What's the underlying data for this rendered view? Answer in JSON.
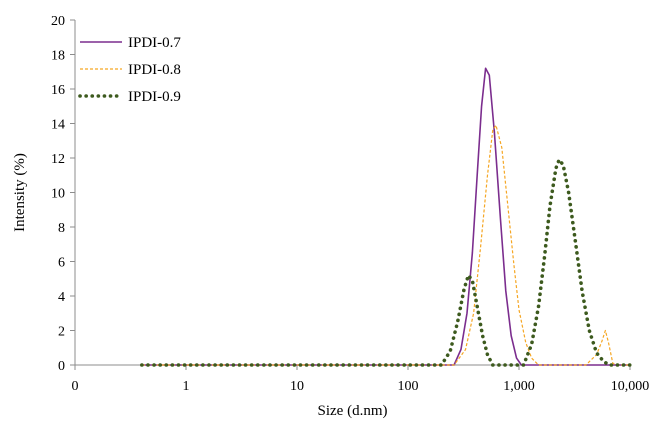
{
  "chart_data": {
    "type": "line",
    "title": "",
    "xlabel": "Size (d.nm)",
    "ylabel": "Intensity (%)",
    "x_scale": "log",
    "x_ticks": [
      0.1,
      1,
      10,
      100,
      1000,
      10000
    ],
    "x_tick_labels": [
      "0",
      "1",
      "10",
      "100",
      "1,000",
      "10,000"
    ],
    "ylim": [
      0,
      20
    ],
    "y_ticks": [
      0,
      2,
      4,
      6,
      8,
      10,
      12,
      14,
      16,
      18,
      20
    ],
    "grid": false,
    "legend_position": "top-left",
    "series": [
      {
        "name": "IPDI-0.7",
        "color": "#7b2d8e",
        "style": "solid",
        "points": [
          [
            0.4,
            0
          ],
          [
            1,
            0
          ],
          [
            10,
            0
          ],
          [
            100,
            0
          ],
          [
            200,
            0
          ],
          [
            260,
            0
          ],
          [
            300,
            0.9
          ],
          [
            340,
            3.0
          ],
          [
            380,
            6.5
          ],
          [
            420,
            11.0
          ],
          [
            460,
            15.0
          ],
          [
            500,
            17.2
          ],
          [
            540,
            16.8
          ],
          [
            600,
            13.5
          ],
          [
            680,
            8.5
          ],
          [
            760,
            4.3
          ],
          [
            850,
            1.7
          ],
          [
            950,
            0.4
          ],
          [
            1050,
            0
          ],
          [
            2000,
            0
          ],
          [
            10000,
            0
          ]
        ]
      },
      {
        "name": "IPDI-0.8",
        "color": "#f5a623",
        "style": "dashed",
        "points": [
          [
            0.4,
            0
          ],
          [
            1,
            0
          ],
          [
            10,
            0
          ],
          [
            100,
            0
          ],
          [
            220,
            0
          ],
          [
            260,
            0
          ],
          [
            330,
            0.9
          ],
          [
            390,
            3.0
          ],
          [
            450,
            6.8
          ],
          [
            520,
            11.0
          ],
          [
            580,
            13.6
          ],
          [
            620,
            13.9
          ],
          [
            700,
            12.6
          ],
          [
            800,
            9.0
          ],
          [
            900,
            5.8
          ],
          [
            1000,
            3.2
          ],
          [
            1150,
            1.3
          ],
          [
            1300,
            0.4
          ],
          [
            1500,
            0
          ],
          [
            4000,
            0
          ],
          [
            5000,
            0.6
          ],
          [
            5600,
            1.4
          ],
          [
            6000,
            2.0
          ],
          [
            6400,
            1.3
          ],
          [
            7000,
            0.1
          ],
          [
            7500,
            0
          ],
          [
            10000,
            0
          ]
        ]
      },
      {
        "name": "IPDI-0.9",
        "color": "#3d5a1e",
        "style": "dotted",
        "points": [
          [
            0.4,
            0
          ],
          [
            1,
            0
          ],
          [
            10,
            0
          ],
          [
            100,
            0
          ],
          [
            200,
            0
          ],
          [
            240,
            0.8
          ],
          [
            280,
            2.5
          ],
          [
            320,
            4.4
          ],
          [
            350,
            5.2
          ],
          [
            380,
            4.9
          ],
          [
            420,
            3.4
          ],
          [
            470,
            1.7
          ],
          [
            520,
            0.6
          ],
          [
            580,
            0
          ],
          [
            1100,
            0
          ],
          [
            1300,
            1.2
          ],
          [
            1500,
            3.4
          ],
          [
            1700,
            6.3
          ],
          [
            1900,
            9.2
          ],
          [
            2150,
            11.4
          ],
          [
            2300,
            11.9
          ],
          [
            2500,
            11.6
          ],
          [
            2800,
            10.0
          ],
          [
            3200,
            7.3
          ],
          [
            3700,
            4.3
          ],
          [
            4300,
            2.0
          ],
          [
            5000,
            0.7
          ],
          [
            5800,
            0.2
          ],
          [
            6500,
            0
          ],
          [
            10000,
            0
          ]
        ]
      }
    ]
  }
}
